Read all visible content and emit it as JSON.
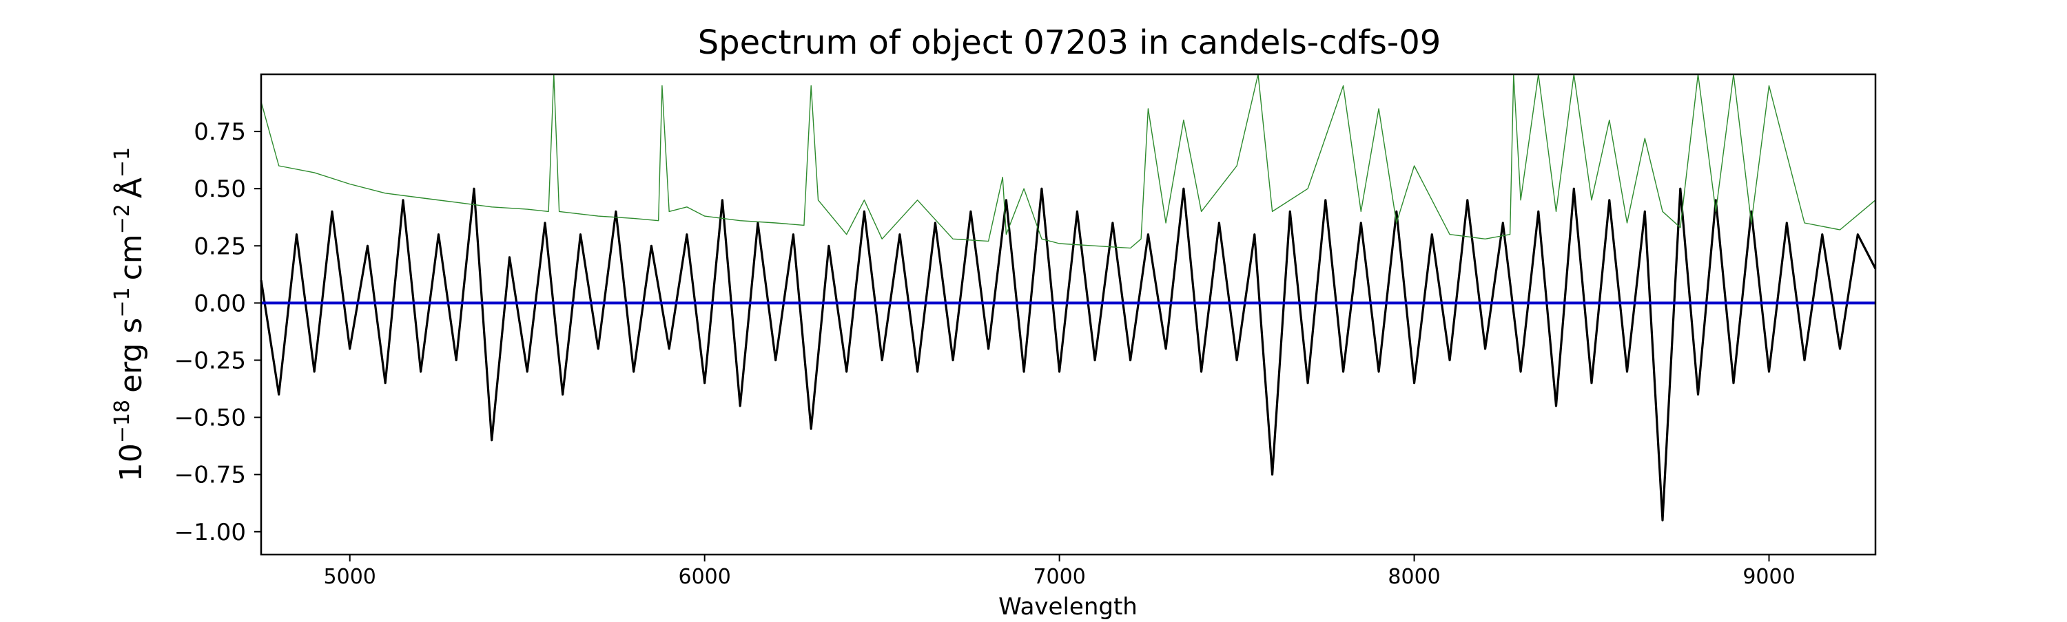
{
  "chart_data": {
    "type": "line",
    "title": "Spectrum of object 07203 in candels-cdfs-09",
    "xlabel": "Wavelength",
    "ylabel_base": "10",
    "ylabel_exp": "−18",
    "ylabel_unit_erg": "erg s",
    "ylabel_unit_cm": "cm",
    "ylabel_unit_ang": "Å",
    "ylabel_exp_neg1": "−1",
    "ylabel_exp_neg2": "−2",
    "xlim": [
      4750,
      9300
    ],
    "ylim": [
      -1.1,
      1.0
    ],
    "x_ticks": [
      5000,
      6000,
      7000,
      8000,
      9000
    ],
    "x_tick_labels": [
      "5000",
      "6000",
      "7000",
      "8000",
      "9000"
    ],
    "y_ticks": [
      -1.0,
      -0.75,
      -0.5,
      -0.25,
      0.0,
      0.25,
      0.5,
      0.75
    ],
    "y_tick_labels": [
      "−1.00",
      "−0.75",
      "−0.50",
      "−0.25",
      "0.00",
      "0.25",
      "0.50",
      "0.75"
    ],
    "grid": false,
    "series": [
      {
        "role": "flux",
        "color": "#000000",
        "x": [
          4750,
          4800,
          4850,
          4900,
          4950,
          5000,
          5050,
          5100,
          5150,
          5200,
          5250,
          5300,
          5350,
          5400,
          5450,
          5500,
          5550,
          5600,
          5650,
          5700,
          5750,
          5800,
          5850,
          5900,
          5950,
          6000,
          6050,
          6100,
          6150,
          6200,
          6250,
          6300,
          6350,
          6400,
          6450,
          6500,
          6550,
          6600,
          6650,
          6700,
          6750,
          6800,
          6850,
          6900,
          6950,
          7000,
          7050,
          7100,
          7150,
          7200,
          7250,
          7300,
          7350,
          7400,
          7450,
          7500,
          7550,
          7600,
          7650,
          7700,
          7750,
          7800,
          7850,
          7900,
          7950,
          8000,
          8050,
          8100,
          8150,
          8200,
          8250,
          8300,
          8350,
          8400,
          8450,
          8500,
          8550,
          8600,
          8650,
          8700,
          8750,
          8800,
          8850,
          8900,
          8950,
          9000,
          9050,
          9100,
          9150,
          9200,
          9250,
          9300
        ],
        "values": [
          0.1,
          -0.4,
          0.3,
          -0.3,
          0.4,
          -0.2,
          0.25,
          -0.35,
          0.45,
          -0.3,
          0.3,
          -0.25,
          0.5,
          -0.6,
          0.2,
          -0.3,
          0.35,
          -0.4,
          0.3,
          -0.2,
          0.4,
          -0.3,
          0.25,
          -0.2,
          0.3,
          -0.35,
          0.45,
          -0.45,
          0.35,
          -0.25,
          0.3,
          -0.55,
          0.25,
          -0.3,
          0.4,
          -0.25,
          0.3,
          -0.3,
          0.35,
          -0.25,
          0.4,
          -0.2,
          0.45,
          -0.3,
          0.5,
          -0.3,
          0.4,
          -0.25,
          0.35,
          -0.25,
          0.3,
          -0.2,
          0.5,
          -0.3,
          0.35,
          -0.25,
          0.3,
          -0.75,
          0.4,
          -0.35,
          0.45,
          -0.3,
          0.35,
          -0.3,
          0.4,
          -0.35,
          0.3,
          -0.25,
          0.45,
          -0.2,
          0.35,
          -0.3,
          0.4,
          -0.45,
          0.5,
          -0.35,
          0.45,
          -0.3,
          0.4,
          -0.95,
          0.5,
          -0.4,
          0.45,
          -0.35,
          0.4,
          -0.3,
          0.35,
          -0.25,
          0.3,
          -0.2,
          0.3,
          0.15
        ]
      },
      {
        "role": "model",
        "color": "#2e8b2e",
        "x": [
          4750,
          4800,
          4900,
          5000,
          5100,
          5200,
          5300,
          5400,
          5500,
          5560,
          5575,
          5590,
          5700,
          5800,
          5870,
          5880,
          5900,
          5950,
          6000,
          6100,
          6200,
          6280,
          6300,
          6320,
          6400,
          6450,
          6500,
          6600,
          6700,
          6800,
          6840,
          6850,
          6900,
          6950,
          7000,
          7100,
          7200,
          7230,
          7250,
          7300,
          7350,
          7400,
          7500,
          7560,
          7600,
          7700,
          7800,
          7850,
          7900,
          7950,
          8000,
          8100,
          8200,
          8270,
          8280,
          8300,
          8350,
          8400,
          8450,
          8500,
          8550,
          8600,
          8650,
          8700,
          8750,
          8800,
          8850,
          8900,
          8950,
          9000,
          9100,
          9200,
          9300
        ],
        "values": [
          0.88,
          0.6,
          0.57,
          0.52,
          0.48,
          0.46,
          0.44,
          0.42,
          0.41,
          0.4,
          1.0,
          0.4,
          0.38,
          0.37,
          0.36,
          0.95,
          0.4,
          0.42,
          0.38,
          0.36,
          0.35,
          0.34,
          0.95,
          0.45,
          0.3,
          0.45,
          0.28,
          0.45,
          0.28,
          0.27,
          0.55,
          0.3,
          0.5,
          0.28,
          0.26,
          0.25,
          0.24,
          0.28,
          0.85,
          0.35,
          0.8,
          0.4,
          0.6,
          1.0,
          0.4,
          0.5,
          0.95,
          0.4,
          0.85,
          0.35,
          0.6,
          0.3,
          0.28,
          0.3,
          1.0,
          0.45,
          1.0,
          0.4,
          1.0,
          0.45,
          0.8,
          0.35,
          0.72,
          0.4,
          0.33,
          1.0,
          0.4,
          1.0,
          0.35,
          0.95,
          0.35,
          0.32,
          0.45
        ]
      },
      {
        "role": "zero",
        "color": "#0000cc",
        "x": [
          4750,
          9300
        ],
        "values": [
          0.0,
          0.0
        ]
      }
    ]
  }
}
